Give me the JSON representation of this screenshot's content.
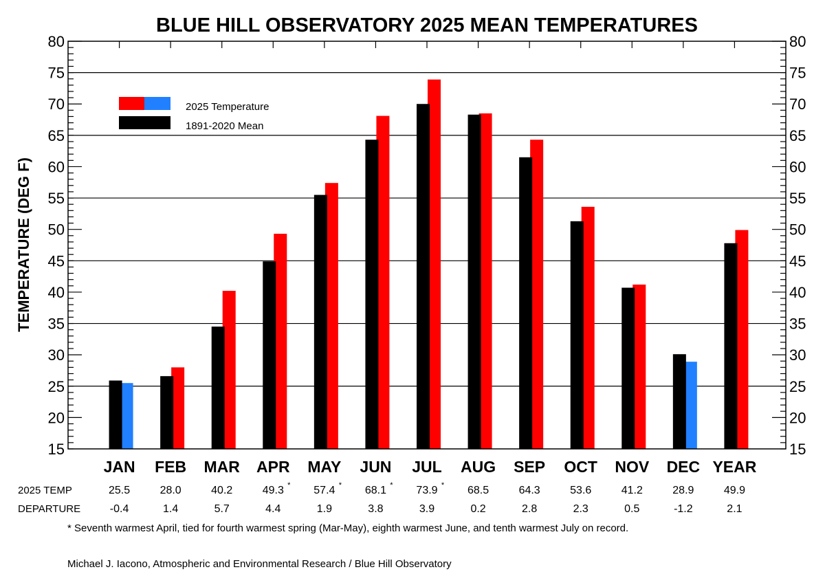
{
  "chart_data": {
    "type": "bar",
    "title": "BLUE HILL OBSERVATORY 2025 MEAN TEMPERATURES",
    "ylabel": "TEMPERATURE (DEG F)",
    "xlabel": "",
    "ylim": [
      15,
      80
    ],
    "yticks": [
      15,
      20,
      25,
      30,
      35,
      40,
      45,
      50,
      55,
      60,
      65,
      70,
      75,
      80
    ],
    "gridlines": [
      25,
      35,
      45,
      55,
      65,
      75
    ],
    "grid": true,
    "legend_position": "top-left",
    "categories": [
      "JAN",
      "FEB",
      "MAR",
      "APR",
      "MAY",
      "JUN",
      "JUL",
      "AUG",
      "SEP",
      "OCT",
      "NOV",
      "DEC",
      "YEAR"
    ],
    "series": [
      {
        "name": "1891-2020 Mean",
        "color": "#000000",
        "values": [
          25.9,
          26.6,
          34.5,
          44.9,
          55.5,
          64.3,
          70.0,
          68.3,
          61.5,
          51.3,
          40.7,
          30.1,
          47.8
        ]
      },
      {
        "name": "2025 Temperature",
        "color": "#ff0000",
        "color_below_mean": "#2080ff",
        "values": [
          25.5,
          28.0,
          40.2,
          49.3,
          57.4,
          68.1,
          73.9,
          68.5,
          64.3,
          53.6,
          41.2,
          28.9,
          49.9
        ]
      }
    ],
    "table": {
      "rows": [
        {
          "label": "2025 TEMP",
          "values": [
            "25.5",
            "28.0",
            "40.2",
            "49.3",
            "57.4",
            "68.1",
            "73.9",
            "68.5",
            "64.3",
            "53.6",
            "41.2",
            "28.9",
            "49.9"
          ],
          "asterisk": [
            false,
            false,
            false,
            true,
            true,
            true,
            true,
            false,
            false,
            false,
            false,
            false,
            false
          ]
        },
        {
          "label": "DEPARTURE",
          "values": [
            "-0.4",
            "1.4",
            "5.7",
            "4.4",
            "1.9",
            "3.8",
            "3.9",
            "0.2",
            "2.8",
            "2.3",
            "0.5",
            "-1.2",
            "2.1"
          ]
        }
      ]
    },
    "legend": [
      {
        "label": "2025 Temperature",
        "colors": [
          "#ff0000",
          "#2080ff"
        ]
      },
      {
        "label": "1891-2020 Mean",
        "colors": [
          "#000000"
        ]
      }
    ],
    "annotations": {
      "footnote": "* Seventh warmest April, tied for fourth warmest spring (Mar-May), eighth warmest June, and tenth warmest July on record.",
      "credit": "Michael J. Iacono, Atmospheric and Environmental Research / Blue Hill Observatory"
    }
  }
}
